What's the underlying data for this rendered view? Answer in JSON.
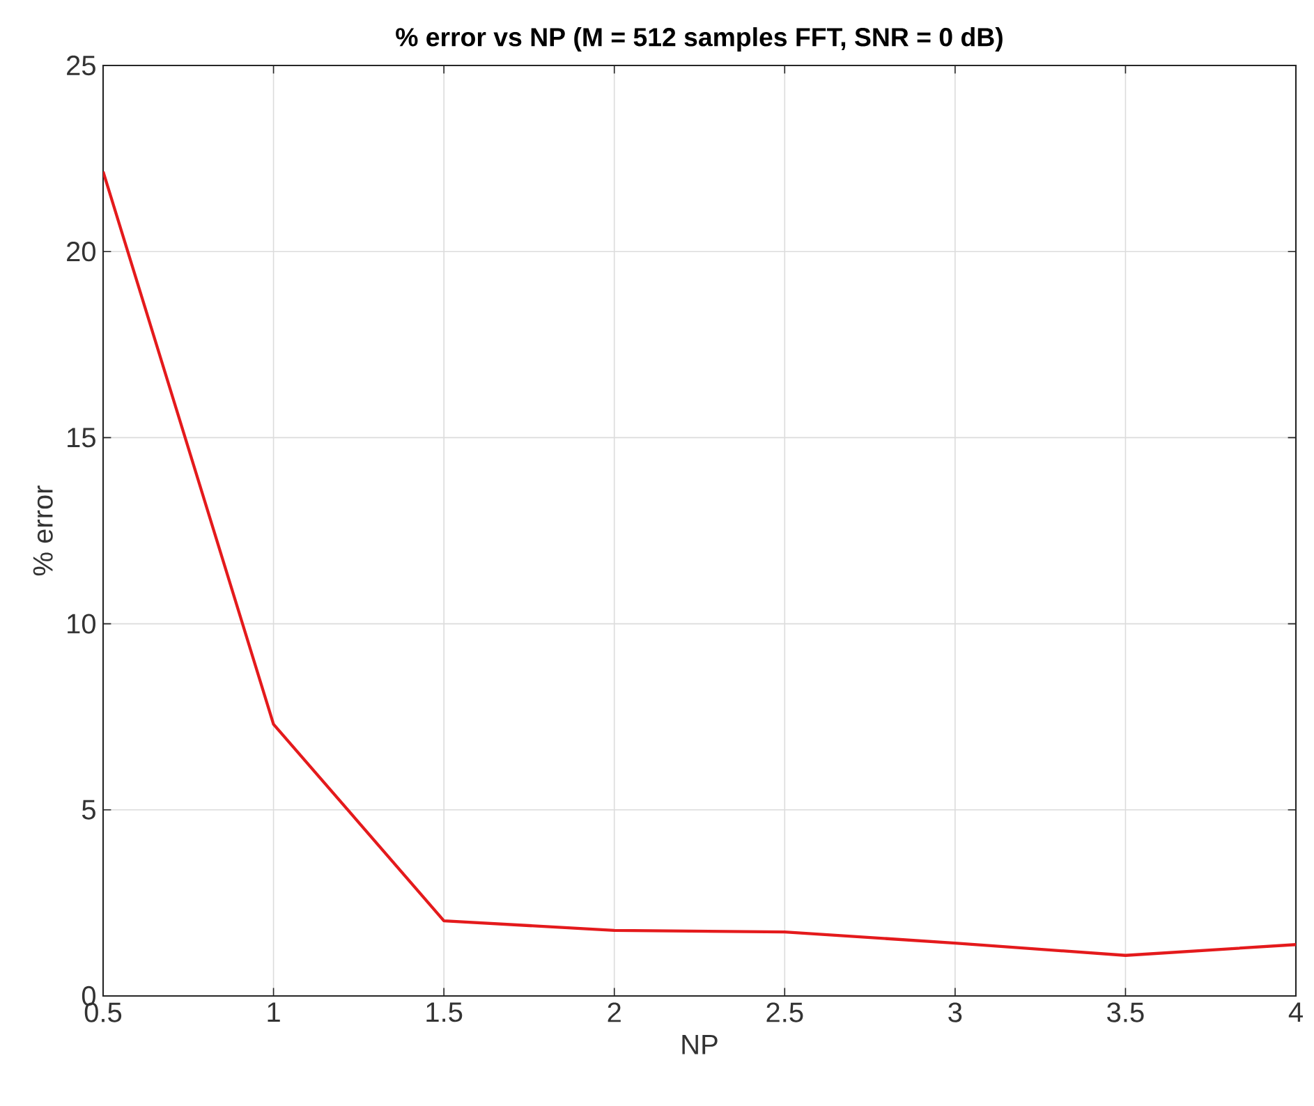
{
  "chart_data": {
    "type": "line",
    "title": "% error vs NP (M = 512 samples FFT, SNR = 0 dB)",
    "xlabel": "NP",
    "ylabel": "% error",
    "x": [
      0.5,
      1,
      1.5,
      2,
      2.5,
      3,
      3.5,
      4
    ],
    "series": [
      {
        "color": "#e41a1c",
        "values": [
          22.15,
          7.3,
          2.02,
          1.76,
          1.72,
          1.42,
          1.09,
          1.38
        ]
      }
    ],
    "xlim": [
      0.5,
      4
    ],
    "ylim": [
      0,
      25
    ],
    "xticks": [
      0.5,
      1,
      1.5,
      2,
      2.5,
      3,
      3.5,
      4
    ],
    "yticks": [
      0,
      5,
      10,
      15,
      20,
      25
    ],
    "grid": true,
    "marker": "none",
    "line_style": "solid"
  }
}
